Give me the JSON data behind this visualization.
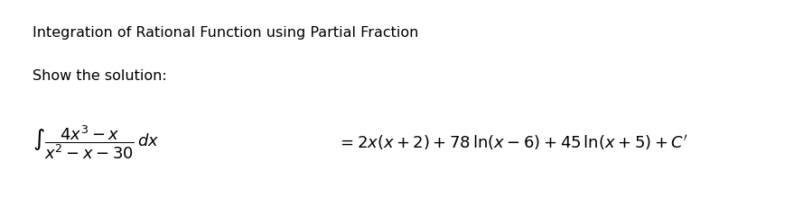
{
  "title": "Integration of Rational Function using Partial Fraction",
  "subtitle": "Show the solution:",
  "background_color": "#ffffff",
  "text_color": "#000000",
  "title_fontsize": 11.5,
  "subtitle_fontsize": 11.5,
  "fig_width": 8.89,
  "fig_height": 2.4,
  "dpi": 100
}
